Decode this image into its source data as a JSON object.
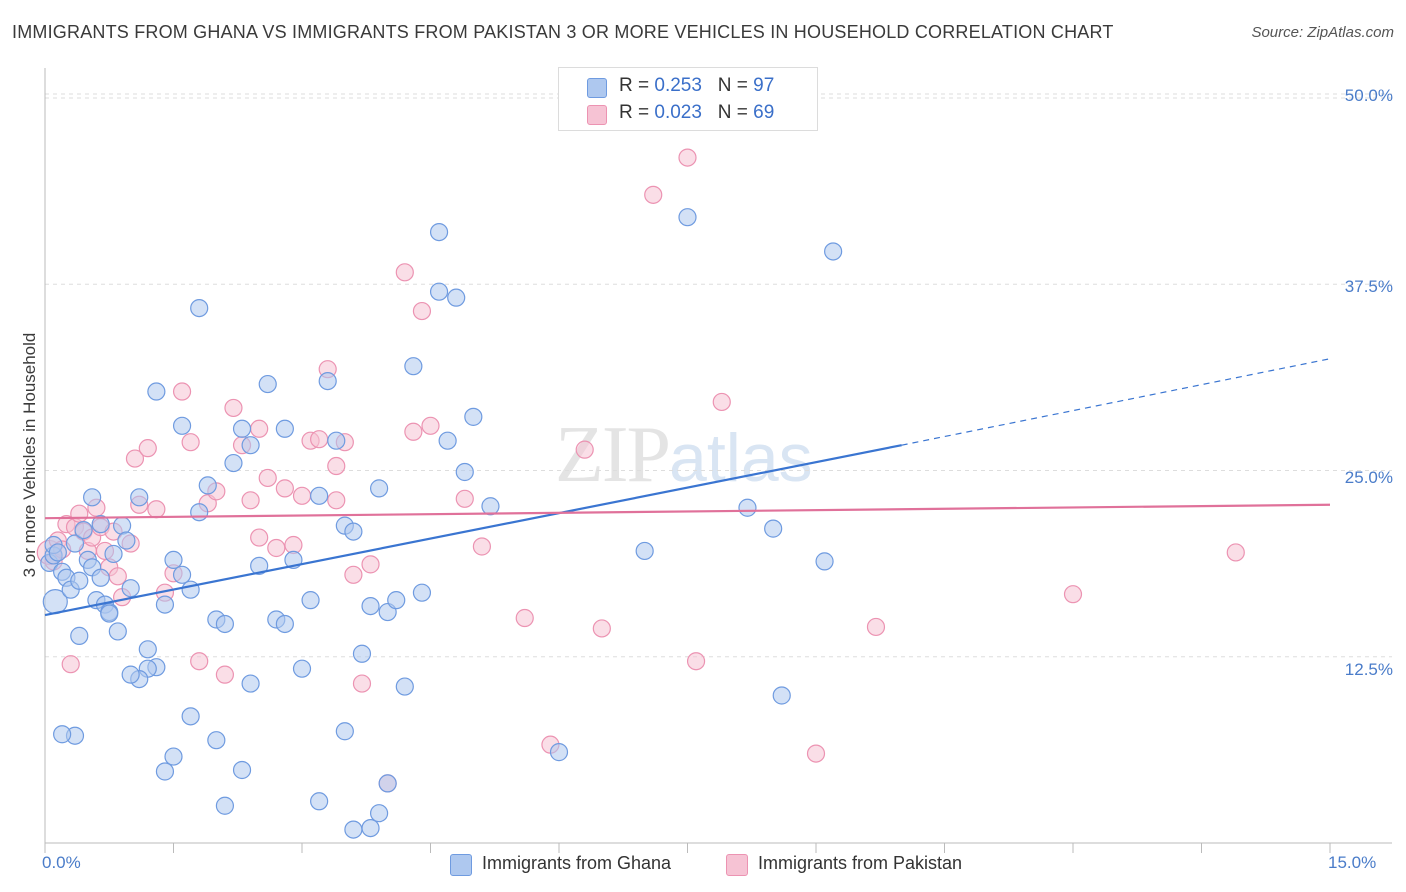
{
  "header": {
    "title": "IMMIGRANTS FROM GHANA VS IMMIGRANTS FROM PAKISTAN 3 OR MORE VEHICLES IN HOUSEHOLD CORRELATION CHART",
    "source": "Source: ZipAtlas.com"
  },
  "watermark": {
    "zip": "ZIP",
    "atlas": "atlas"
  },
  "legend_top": {
    "ghana": {
      "r_label": "R = ",
      "r_value": "0.253",
      "n_label": "N = ",
      "n_value": "97"
    },
    "pakistan": {
      "r_label": "R = ",
      "r_value": "0.023",
      "n_label": "N = ",
      "n_value": "69"
    }
  },
  "legend_bottom": {
    "ghana": "Immigrants from Ghana",
    "pakistan": "Immigrants from Pakistan"
  },
  "colors": {
    "ghana_fill": "#aec8ef",
    "ghana_stroke": "#6f9be0",
    "ghana_line": "#3a75d1",
    "pakistan_fill": "#f6c3d4",
    "pakistan_stroke": "#ec93b2",
    "pakistan_line": "#e0719a",
    "axis_text": "#4a7cc9",
    "grid": "#dddddd"
  },
  "chart_data": {
    "type": "scatter",
    "title": "IMMIGRANTS FROM GHANA VS IMMIGRANTS FROM PAKISTAN 3 OR MORE VEHICLES IN HOUSEHOLD CORRELATION CHART",
    "xlabel": "",
    "ylabel": "3 or more Vehicles in Household",
    "xlim": [
      0,
      15
    ],
    "ylim": [
      0,
      50
    ],
    "x_tick_labels": [
      "0.0%",
      "15.0%"
    ],
    "y_ticks": [
      12.5,
      25.0,
      37.5,
      50.0
    ],
    "y_tick_labels": [
      "12.5%",
      "25.0%",
      "37.5%",
      "50.0%"
    ],
    "grid": "horizontal dashed",
    "series": [
      {
        "name": "Immigrants from Ghana",
        "R": 0.253,
        "N": 97,
        "trend": {
          "x_start": 0,
          "y_start": 15.3,
          "x_end": 10.0,
          "y_end": 26.7,
          "dashed_to_x": 15.0,
          "dashed_to_y": 32.5
        },
        "points": [
          [
            0.12,
            16.2,
            "large"
          ],
          [
            0.05,
            18.8
          ],
          [
            0.1,
            19.3
          ],
          [
            0.1,
            20.0
          ],
          [
            0.15,
            19.5
          ],
          [
            0.2,
            18.2
          ],
          [
            0.25,
            17.8
          ],
          [
            0.3,
            17.0
          ],
          [
            0.35,
            20.1
          ],
          [
            0.4,
            17.6
          ],
          [
            0.45,
            21.0
          ],
          [
            0.5,
            19.0
          ],
          [
            0.55,
            18.5
          ],
          [
            0.6,
            16.3
          ],
          [
            0.65,
            17.8
          ],
          [
            0.7,
            16.0
          ],
          [
            0.75,
            15.5
          ],
          [
            0.8,
            19.4
          ],
          [
            0.85,
            14.2
          ],
          [
            0.9,
            21.3
          ],
          [
            0.95,
            20.3
          ],
          [
            1.0,
            17.1
          ],
          [
            1.1,
            23.2
          ],
          [
            1.2,
            13.0
          ],
          [
            1.3,
            11.8
          ],
          [
            1.4,
            16.0
          ],
          [
            1.5,
            19.0
          ],
          [
            1.6,
            18.0
          ],
          [
            1.7,
            17.0
          ],
          [
            1.8,
            22.2
          ],
          [
            1.9,
            24.0
          ],
          [
            2.0,
            15.0
          ],
          [
            2.1,
            14.7
          ],
          [
            2.2,
            25.5
          ],
          [
            2.3,
            27.8
          ],
          [
            2.4,
            26.7
          ],
          [
            2.5,
            18.6
          ],
          [
            2.6,
            30.8
          ],
          [
            2.7,
            15.0
          ],
          [
            2.8,
            14.7
          ],
          [
            2.9,
            19.0
          ],
          [
            3.0,
            11.7
          ],
          [
            3.1,
            16.3
          ],
          [
            3.2,
            23.3
          ],
          [
            3.3,
            31.0
          ],
          [
            3.4,
            27.0
          ],
          [
            3.5,
            21.3
          ],
          [
            3.6,
            20.9
          ],
          [
            3.7,
            12.7
          ],
          [
            3.8,
            15.9
          ],
          [
            3.9,
            23.8
          ],
          [
            4.0,
            15.5
          ],
          [
            4.1,
            16.3
          ],
          [
            4.2,
            10.5
          ],
          [
            4.3,
            32.0
          ],
          [
            4.4,
            16.8
          ],
          [
            4.6,
            41.0
          ],
          [
            4.7,
            27.0
          ],
          [
            4.8,
            36.6
          ],
          [
            4.9,
            24.9
          ],
          [
            5.0,
            28.6
          ],
          [
            5.2,
            22.6
          ],
          [
            1.3,
            30.3
          ],
          [
            1.6,
            28.0
          ],
          [
            1.8,
            35.9
          ],
          [
            2.0,
            6.9
          ],
          [
            2.1,
            2.5
          ],
          [
            2.3,
            4.9
          ],
          [
            2.4,
            10.7
          ],
          [
            1.7,
            8.5
          ],
          [
            1.5,
            5.8
          ],
          [
            1.4,
            4.8
          ],
          [
            1.2,
            11.7
          ],
          [
            1.1,
            11.0
          ],
          [
            1.0,
            11.3
          ],
          [
            0.4,
            13.9
          ],
          [
            0.35,
            7.2
          ],
          [
            0.2,
            7.3
          ],
          [
            3.2,
            2.8
          ],
          [
            3.6,
            0.9
          ],
          [
            3.8,
            1.0
          ],
          [
            3.9,
            2.0
          ],
          [
            4.0,
            4.0
          ],
          [
            3.5,
            7.5
          ],
          [
            4.6,
            37.0
          ],
          [
            7.5,
            42.0
          ],
          [
            9.2,
            39.7
          ],
          [
            7.0,
            19.6
          ],
          [
            8.2,
            22.5
          ],
          [
            8.5,
            21.1
          ],
          [
            9.1,
            18.9
          ],
          [
            6.0,
            6.1
          ],
          [
            8.6,
            9.9
          ],
          [
            2.8,
            27.8
          ],
          [
            0.55,
            23.2
          ],
          [
            0.65,
            21.4
          ],
          [
            0.75,
            15.4
          ]
        ]
      },
      {
        "name": "Immigrants from Pakistan",
        "R": 0.023,
        "N": 69,
        "trend": {
          "x_start": 0,
          "y_start": 21.8,
          "x_end": 15.0,
          "y_end": 22.7
        },
        "points": [
          [
            0.05,
            19.5,
            "large"
          ],
          [
            0.1,
            18.9
          ],
          [
            0.15,
            20.3
          ],
          [
            0.2,
            19.7
          ],
          [
            0.25,
            21.4
          ],
          [
            0.3,
            12.0
          ],
          [
            0.35,
            21.2
          ],
          [
            0.4,
            22.1
          ],
          [
            0.45,
            20.9
          ],
          [
            0.5,
            19.6
          ],
          [
            0.55,
            20.5
          ],
          [
            0.6,
            22.5
          ],
          [
            0.65,
            21.2
          ],
          [
            0.7,
            19.6
          ],
          [
            0.75,
            18.5
          ],
          [
            0.8,
            20.9
          ],
          [
            0.85,
            17.9
          ],
          [
            0.9,
            16.5
          ],
          [
            1.0,
            20.1
          ],
          [
            1.05,
            25.8
          ],
          [
            1.1,
            22.7
          ],
          [
            1.2,
            26.5
          ],
          [
            1.3,
            22.4
          ],
          [
            1.4,
            16.8
          ],
          [
            1.5,
            18.1
          ],
          [
            1.6,
            30.3
          ],
          [
            1.7,
            26.9
          ],
          [
            1.8,
            12.2
          ],
          [
            1.9,
            22.8
          ],
          [
            2.0,
            23.6
          ],
          [
            2.1,
            11.3
          ],
          [
            2.2,
            29.2
          ],
          [
            2.3,
            26.7
          ],
          [
            2.4,
            23.0
          ],
          [
            2.5,
            20.5
          ],
          [
            2.6,
            24.5
          ],
          [
            2.7,
            19.8
          ],
          [
            2.8,
            23.8
          ],
          [
            2.9,
            20.0
          ],
          [
            3.0,
            23.3
          ],
          [
            3.1,
            27.0
          ],
          [
            3.2,
            27.1
          ],
          [
            3.3,
            31.8
          ],
          [
            3.4,
            25.3
          ],
          [
            3.5,
            26.9
          ],
          [
            3.6,
            18.0
          ],
          [
            3.7,
            10.7
          ],
          [
            3.8,
            18.7
          ],
          [
            4.0,
            4.0
          ],
          [
            4.2,
            38.3
          ],
          [
            4.3,
            27.6
          ],
          [
            4.4,
            35.7
          ],
          [
            4.5,
            28.0
          ],
          [
            4.9,
            23.1
          ],
          [
            5.1,
            19.9
          ],
          [
            5.6,
            15.1
          ],
          [
            5.9,
            6.6
          ],
          [
            6.3,
            26.4
          ],
          [
            6.5,
            14.4
          ],
          [
            7.1,
            43.5
          ],
          [
            7.5,
            46.0
          ],
          [
            7.6,
            12.2
          ],
          [
            7.9,
            29.6
          ],
          [
            9.0,
            6.0
          ],
          [
            9.7,
            14.5
          ],
          [
            12.0,
            16.7
          ],
          [
            13.9,
            19.5
          ],
          [
            3.4,
            23.0
          ],
          [
            2.5,
            27.8
          ]
        ]
      }
    ]
  }
}
